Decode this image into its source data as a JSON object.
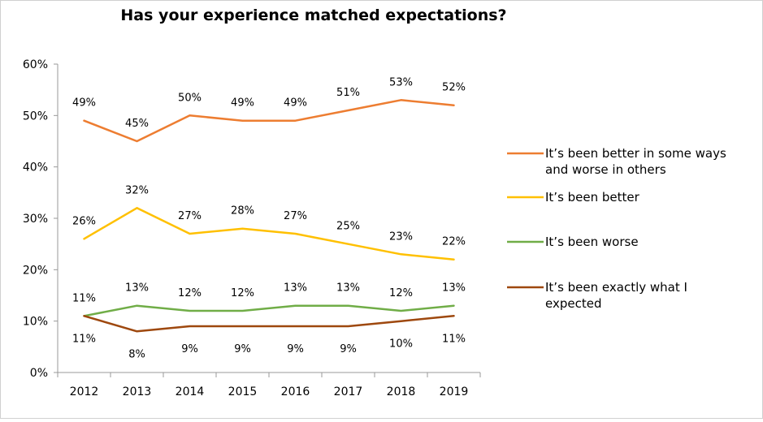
{
  "chart_data": {
    "type": "line",
    "title": "Has your experience matched expectations?",
    "xlabel": "",
    "ylabel": "",
    "categories": [
      "2012",
      "2013",
      "2014",
      "2015",
      "2016",
      "2017",
      "2018",
      "2019"
    ],
    "ylim": [
      0,
      60
    ],
    "yticks": [
      "0%",
      "10%",
      "20%",
      "30%",
      "40%",
      "50%",
      "60%"
    ],
    "value_format": "percent",
    "grid": false,
    "legend_position": "right",
    "series": [
      {
        "name": "It’s been better in some ways and worse in others",
        "name_lines": [
          "It’s been better in some ways",
          "and worse in others"
        ],
        "color": "#ED7D31",
        "values": [
          49,
          45,
          50,
          49,
          49,
          51,
          53,
          52
        ],
        "labels": [
          "49%",
          "45%",
          "50%",
          "49%",
          "49%",
          "51%",
          "53%",
          "52%"
        ],
        "label_position": "above"
      },
      {
        "name": "It’s been better",
        "name_lines": [
          "It’s been better"
        ],
        "color": "#FFC000",
        "values": [
          26,
          32,
          27,
          28,
          27,
          25,
          23,
          22
        ],
        "labels": [
          "26%",
          "32%",
          "27%",
          "28%",
          "27%",
          "25%",
          "23%",
          "22%"
        ],
        "label_position": "above"
      },
      {
        "name": "It’s been worse",
        "name_lines": [
          "It’s been worse"
        ],
        "color": "#70AD47",
        "values": [
          11,
          13,
          12,
          12,
          13,
          13,
          12,
          13
        ],
        "labels": [
          "11%",
          "13%",
          "12%",
          "12%",
          "13%",
          "13%",
          "12%",
          "13%"
        ],
        "label_position": "above"
      },
      {
        "name": "It’s been exactly what I expected",
        "name_lines": [
          "It’s been exactly what I",
          "expected"
        ],
        "color": "#9E480E",
        "values": [
          11,
          8,
          9,
          9,
          9,
          9,
          10,
          11
        ],
        "labels": [
          "11%",
          "8%",
          "9%",
          "9%",
          "9%",
          "9%",
          "10%",
          "11%"
        ],
        "label_position": "below"
      }
    ]
  }
}
